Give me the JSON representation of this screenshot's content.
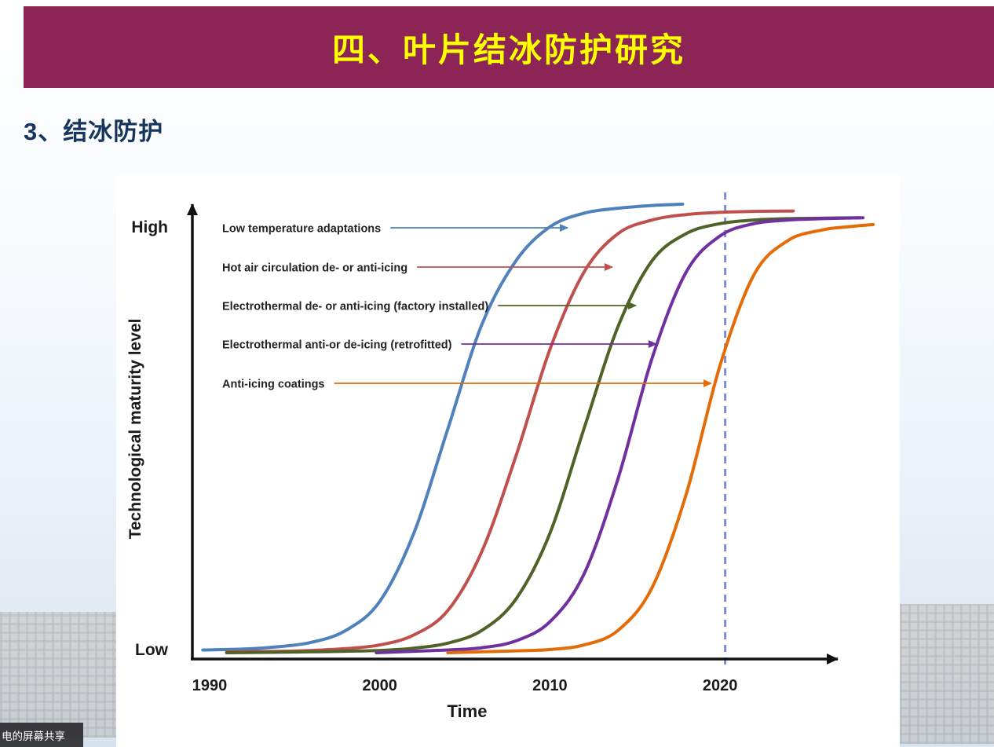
{
  "header": {
    "title": "四、叶片结冰防护研究"
  },
  "subtitle": "3、结冰防护",
  "overlay": {
    "screen_share_label": "电的屏幕共享"
  },
  "colors": {
    "header_bar": "#8c2456",
    "header_title": "#ffff00",
    "subtitle_text": "#17365d",
    "axis": "#111111",
    "vline": "#7d8ed8"
  },
  "chart_data": {
    "type": "line",
    "title": "",
    "xlabel": "Time",
    "ylabel": "Technological maturity level",
    "y_end_labels": {
      "high": "High",
      "low": "Low"
    },
    "x_ticks": [
      "1990",
      "2000",
      "2010",
      "2020"
    ],
    "x_range": [
      1989,
      2029.5
    ],
    "y_range": [
      0,
      100
    ],
    "grid": false,
    "legend_position": "upper-left labels with colored arrows pointing to curves",
    "vline": {
      "x": 2020.3,
      "style": "dashed",
      "color": "#7d8ed8"
    },
    "series": [
      {
        "name": "Low temperature adaptations",
        "color": "#4f81bd",
        "points": [
          [
            1989.6,
            1.3
          ],
          [
            1992,
            1.5
          ],
          [
            1994,
            2
          ],
          [
            1996,
            3
          ],
          [
            1998,
            5.6
          ],
          [
            2000,
            12
          ],
          [
            2002,
            27
          ],
          [
            2004,
            50
          ],
          [
            2006,
            73
          ],
          [
            2008,
            87
          ],
          [
            2010,
            94.5
          ],
          [
            2012,
            97.5
          ],
          [
            2014,
            98.6
          ],
          [
            2016,
            99.2
          ],
          [
            2017.8,
            99.5
          ]
        ]
      },
      {
        "name": "Hot air circulation de- or anti-icing",
        "color": "#c0504d",
        "points": [
          [
            1991,
            0.9
          ],
          [
            1994,
            1
          ],
          [
            1996,
            1.2
          ],
          [
            1998,
            1.6
          ],
          [
            2000,
            2.4
          ],
          [
            2002,
            4.6
          ],
          [
            2004,
            10
          ],
          [
            2006,
            23
          ],
          [
            2008,
            44
          ],
          [
            2010,
            67.5
          ],
          [
            2012,
            84.5
          ],
          [
            2014,
            93
          ],
          [
            2016,
            96
          ],
          [
            2018,
            97.2
          ],
          [
            2020,
            97.7
          ],
          [
            2022,
            97.9
          ],
          [
            2024.3,
            98
          ]
        ]
      },
      {
        "name": "Electrothermal de- or anti-icing (factory installed)",
        "color": "#4f6228",
        "points": [
          [
            1991,
            0.7
          ],
          [
            1996,
            0.9
          ],
          [
            2000,
            1.2
          ],
          [
            2002,
            1.7
          ],
          [
            2004,
            2.8
          ],
          [
            2006,
            5.6
          ],
          [
            2008,
            12.5
          ],
          [
            2010,
            27
          ],
          [
            2012,
            50
          ],
          [
            2014,
            72.5
          ],
          [
            2016,
            87
          ],
          [
            2018,
            93
          ],
          [
            2020,
            95.2
          ],
          [
            2022,
            96
          ],
          [
            2024,
            96.3
          ],
          [
            2026,
            96.4
          ],
          [
            2028.2,
            96.5
          ]
        ]
      },
      {
        "name": "Electrothermal anti-or de-icing (retrofitted)",
        "color": "#7030a0",
        "points": [
          [
            1999.8,
            0.7
          ],
          [
            2004,
            1.3
          ],
          [
            2006,
            1.8
          ],
          [
            2008,
            3.3
          ],
          [
            2010,
            7.5
          ],
          [
            2012,
            18
          ],
          [
            2014,
            39
          ],
          [
            2016,
            65.5
          ],
          [
            2018,
            84.5
          ],
          [
            2020,
            92.5
          ],
          [
            2022,
            95.2
          ],
          [
            2024,
            96
          ],
          [
            2026,
            96.3
          ],
          [
            2028.4,
            96.5
          ]
        ]
      },
      {
        "name": "Anti-icing coatings",
        "color": "#e36c09",
        "points": [
          [
            2004,
            0.7
          ],
          [
            2008,
            1.1
          ],
          [
            2010,
            1.4
          ],
          [
            2012,
            2.4
          ],
          [
            2014,
            5.6
          ],
          [
            2016,
            15
          ],
          [
            2018,
            35.5
          ],
          [
            2020,
            64
          ],
          [
            2022,
            84
          ],
          [
            2024,
            91.5
          ],
          [
            2026,
            93.8
          ],
          [
            2027.5,
            94.5
          ],
          [
            2029,
            95
          ]
        ]
      }
    ]
  }
}
